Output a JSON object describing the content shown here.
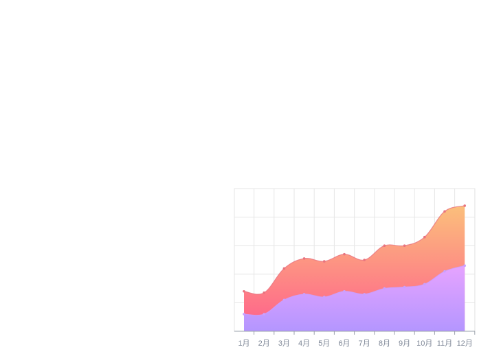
{
  "chart_data": {
    "type": "area",
    "categories": [
      "1月",
      "2月",
      "3月",
      "4月",
      "5月",
      "6月",
      "7月",
      "8月",
      "9月",
      "10月",
      "11月",
      "12月"
    ],
    "series": [
      {
        "values": [
          1.4,
          1.35,
          2.2,
          2.55,
          2.45,
          2.7,
          2.5,
          3.0,
          3.0,
          3.3,
          4.2,
          4.4
        ]
      },
      {
        "values": [
          0.6,
          0.6,
          1.1,
          1.3,
          1.2,
          1.4,
          1.3,
          1.5,
          1.55,
          1.65,
          2.1,
          2.3
        ]
      }
    ],
    "ylim": [
      0,
      5
    ],
    "grid": true,
    "colors": {
      "upper_top": "#fbbf7b",
      "upper_bottom": "#ff5f8c",
      "lower_top": "#e6a3ff",
      "lower_bottom": "#b496ff",
      "upper_line": "#e8737f",
      "lower_line": "#c9a0ff",
      "grid": "#e6e6e6",
      "axis": "#9aa1ab"
    }
  }
}
